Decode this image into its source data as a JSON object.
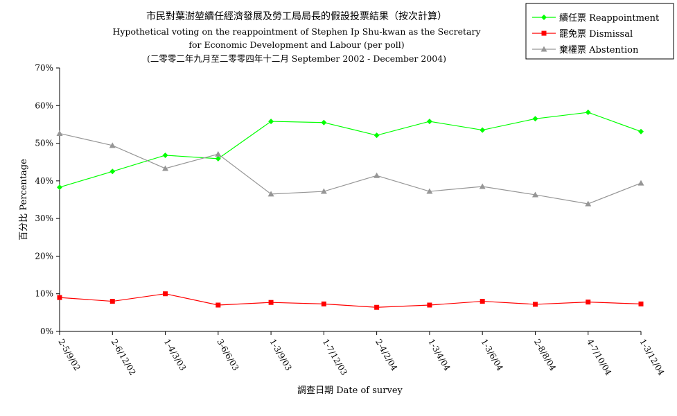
{
  "chart_data": {
    "type": "line",
    "title": "市民對葉澍堃續任經濟發展及勞工局局長的假設投票結果（按次計算）",
    "subtitle_lines": [
      "Hypothetical voting on the reappointment of Stephen Ip Shu-kwan as the Secretary",
      "for Economic Development and Labour (per poll)",
      "(二零零二年九月至二零零四年十二月 September 2002 -  December 2004)"
    ],
    "xlabel": "調查日期 Date of survey",
    "ylabel": "百分比 Percentage",
    "ylim": [
      0,
      70
    ],
    "y_ticks": [
      "0%",
      "10%",
      "20%",
      "30%",
      "40%",
      "50%",
      "60%",
      "70%"
    ],
    "grid": false,
    "legend_position": "top-right",
    "categories": [
      "2-5/9/02",
      "2-6/12/02",
      "1-4/3/03",
      "3-6/6/03",
      "1-3/9/03",
      "1-7/12/03",
      "2-4/2/04",
      "1-3/4/04",
      "1-3/6/04",
      "2-8/8/04",
      "4-7/10/04",
      "1-3/12/04"
    ],
    "series": [
      {
        "name": "續任票 Reappointment",
        "color": "#00ff00",
        "marker": "diamond",
        "values": [
          38.3,
          42.5,
          46.8,
          45.9,
          55.8,
          55.5,
          52.1,
          55.8,
          53.5,
          56.5,
          58.2,
          53.1
        ]
      },
      {
        "name": "罷免票 Dismissal",
        "color": "#ff0000",
        "marker": "square",
        "values": [
          9.0,
          8.0,
          10.0,
          7.0,
          7.7,
          7.3,
          6.4,
          7.0,
          8.0,
          7.2,
          7.8,
          7.3
        ]
      },
      {
        "name": "棄權票 Abstention",
        "color": "#969696",
        "marker": "triangle",
        "values": [
          52.6,
          49.4,
          43.3,
          47.1,
          36.5,
          37.2,
          41.4,
          37.2,
          38.5,
          36.3,
          33.9,
          39.4
        ]
      }
    ]
  }
}
